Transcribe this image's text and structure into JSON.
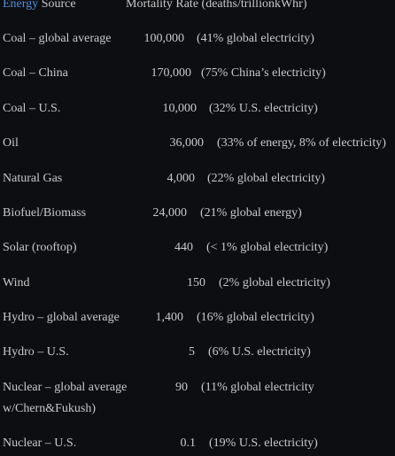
{
  "header": {
    "link_text": "Energy",
    "source_text": " Source",
    "mortality_text": "Mortality Rate (deaths/trillionkWhr)"
  },
  "rows": [
    {
      "label": "Coal – global average",
      "label2": "",
      "value": "100,000",
      "note": "(41% global electricity)"
    },
    {
      "label": "Coal – China",
      "label2": "",
      "value": "170,000",
      "note": "(75% China’s electricity)"
    },
    {
      "label": "Coal – U.S.",
      "label2": "",
      "value": "10,000",
      "note": "(32% U.S. electricity)"
    },
    {
      "label": "Oil",
      "label2": "",
      "value": "36,000",
      "note": "(33% of energy, 8% of electricity)"
    },
    {
      "label": "Natural Gas",
      "label2": "",
      "value": "4,000",
      "note": "(22% global electricity)"
    },
    {
      "label": "Biofuel/Biomass",
      "label2": "",
      "value": "24,000",
      "note": "(21% global energy)"
    },
    {
      "label": "Solar (rooftop)",
      "label2": "",
      "value": "440",
      "note": "(< 1% global electricity)"
    },
    {
      "label": "Wind",
      "label2": "",
      "value": "150",
      "note": "(2% global electricity)"
    },
    {
      "label": "Hydro – global average",
      "label2": "",
      "value": "1,400",
      "note": "(16% global electricity)"
    },
    {
      "label": "Hydro – U.S.",
      "label2": "",
      "value": "5",
      "note": "(6% U.S. electricity)"
    },
    {
      "label": "Nuclear – global average",
      "label2": "w/Chern&Fukush)",
      "value": "90",
      "note": "(11%  global electricity"
    },
    {
      "label": "Nuclear – U.S.",
      "label2": "",
      "value": "0.1",
      "note": "(19% U.S. electricity)"
    }
  ]
}
